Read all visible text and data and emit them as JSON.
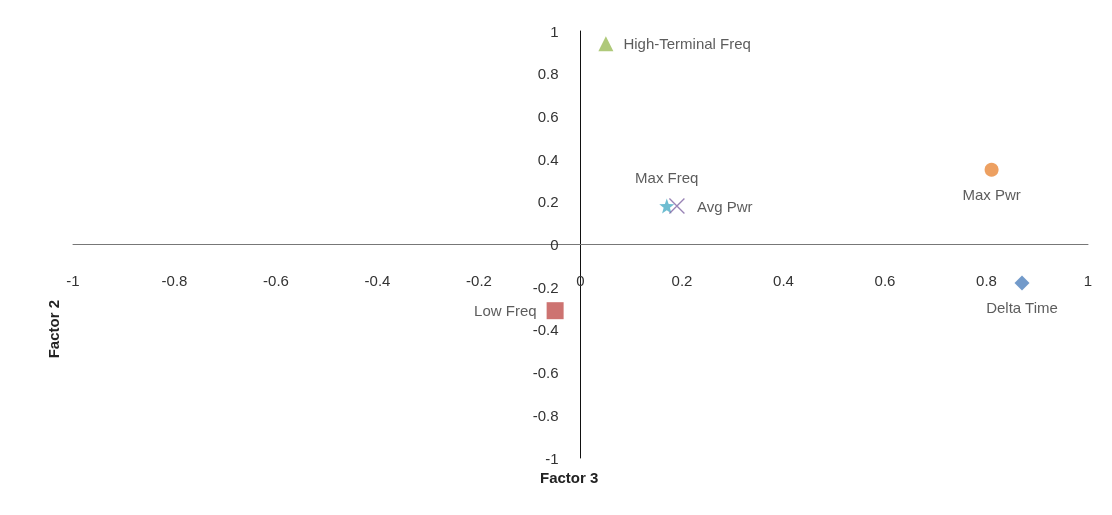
{
  "chart_data": {
    "type": "scatter",
    "xlabel": "Factor 3",
    "ylabel": "Factor 2",
    "xlim": [
      -1,
      1
    ],
    "ylim": [
      -1,
      1
    ],
    "xticks": [
      -1,
      -0.8,
      -0.6,
      -0.4,
      -0.2,
      0,
      0.2,
      0.4,
      0.6,
      0.8,
      1
    ],
    "yticks": [
      -1,
      -0.8,
      -0.6,
      -0.4,
      -0.2,
      0,
      0.2,
      0.4,
      0.6,
      0.8,
      1
    ],
    "grid": false,
    "legend": false,
    "series": [
      {
        "name": "High-Terminal Freq",
        "color": "#9bbb59",
        "marker": "triangle",
        "x": [
          0.05
        ],
        "values": [
          0.94
        ]
      },
      {
        "name": "Max Freq",
        "color": "#4bacc6",
        "marker": "star",
        "x": [
          0.17
        ],
        "values": [
          0.18
        ]
      },
      {
        "name": "Avg Pwr",
        "color": "#8064a2",
        "marker": "cross",
        "x": [
          0.19
        ],
        "values": [
          0.18
        ]
      },
      {
        "name": "Max Pwr",
        "color": "#e8883a",
        "marker": "circle",
        "x": [
          0.81
        ],
        "values": [
          0.35
        ]
      },
      {
        "name": "Delta Time",
        "color": "#4f81bd",
        "marker": "diamond",
        "x": [
          0.87
        ],
        "values": [
          -0.18
        ]
      },
      {
        "name": "Low Freq",
        "color": "#c0504d",
        "marker": "square",
        "x": [
          -0.05
        ],
        "values": [
          -0.31
        ]
      }
    ]
  }
}
